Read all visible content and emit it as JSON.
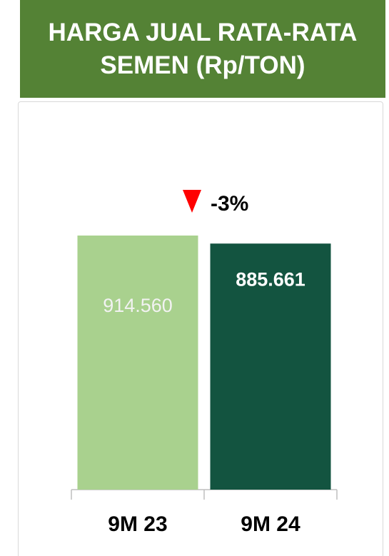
{
  "chart_data": {
    "type": "bar",
    "title": "HARGA JUAL RATA-RATA SEMEN (Rp/TON)",
    "categories": [
      "9M 23",
      "9M 24"
    ],
    "values": [
      914560,
      885661
    ],
    "value_labels": [
      "914.560",
      "885.661"
    ],
    "colors": [
      "#a9d18e",
      "#135440"
    ],
    "annotation": "-3%"
  }
}
